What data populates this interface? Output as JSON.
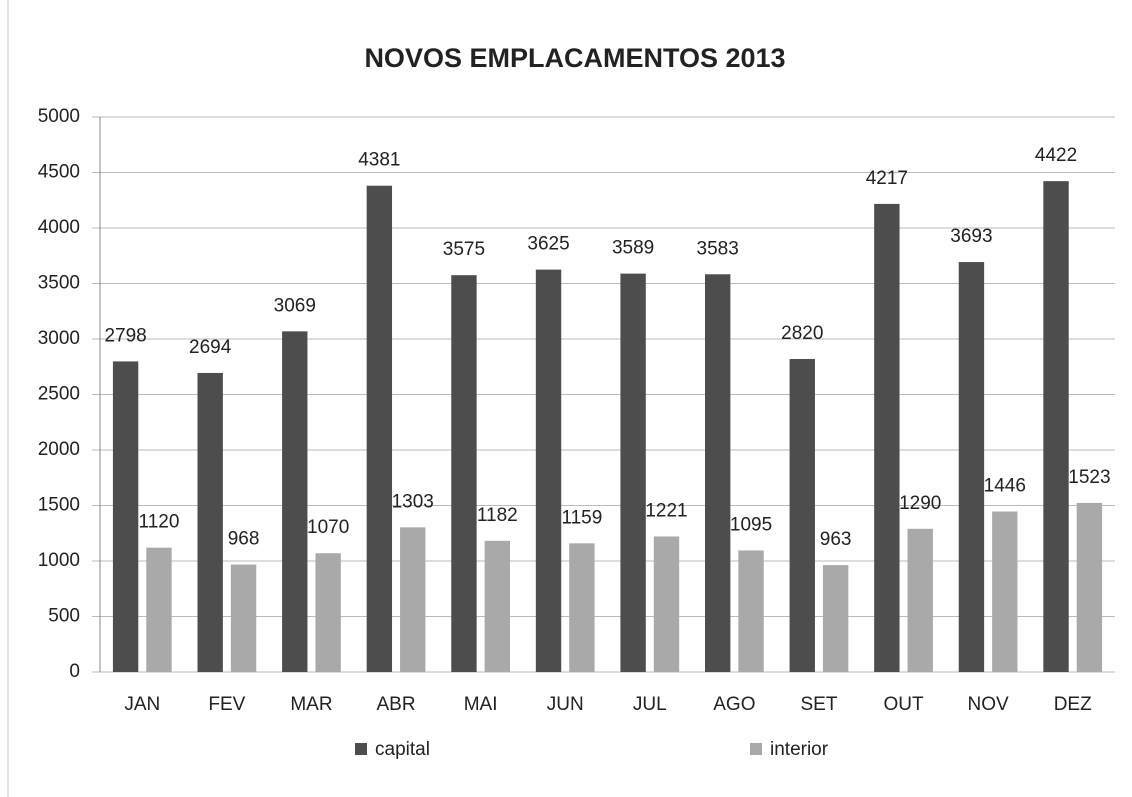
{
  "chart_data": {
    "type": "bar",
    "title": "NOVOS EMPLACAMENTOS 2013",
    "categories": [
      "JAN",
      "FEV",
      "MAR",
      "ABR",
      "MAI",
      "JUN",
      "JUL",
      "AGO",
      "SET",
      "OUT",
      "NOV",
      "DEZ"
    ],
    "series": [
      {
        "name": "capital",
        "color": "#4d4d4d",
        "values": [
          2798,
          2694,
          3069,
          4381,
          3575,
          3625,
          3589,
          3583,
          2820,
          4217,
          3693,
          4422
        ]
      },
      {
        "name": "interior",
        "color": "#a9a9a9",
        "values": [
          1120,
          968,
          1070,
          1303,
          1182,
          1159,
          1221,
          1095,
          963,
          1290,
          1446,
          1523
        ]
      }
    ],
    "ylim": [
      0,
      5000
    ],
    "yticks": [
      0,
      500,
      1000,
      1500,
      2000,
      2500,
      3000,
      3500,
      4000,
      4500,
      5000
    ],
    "grid": true,
    "legend": "bottom"
  }
}
